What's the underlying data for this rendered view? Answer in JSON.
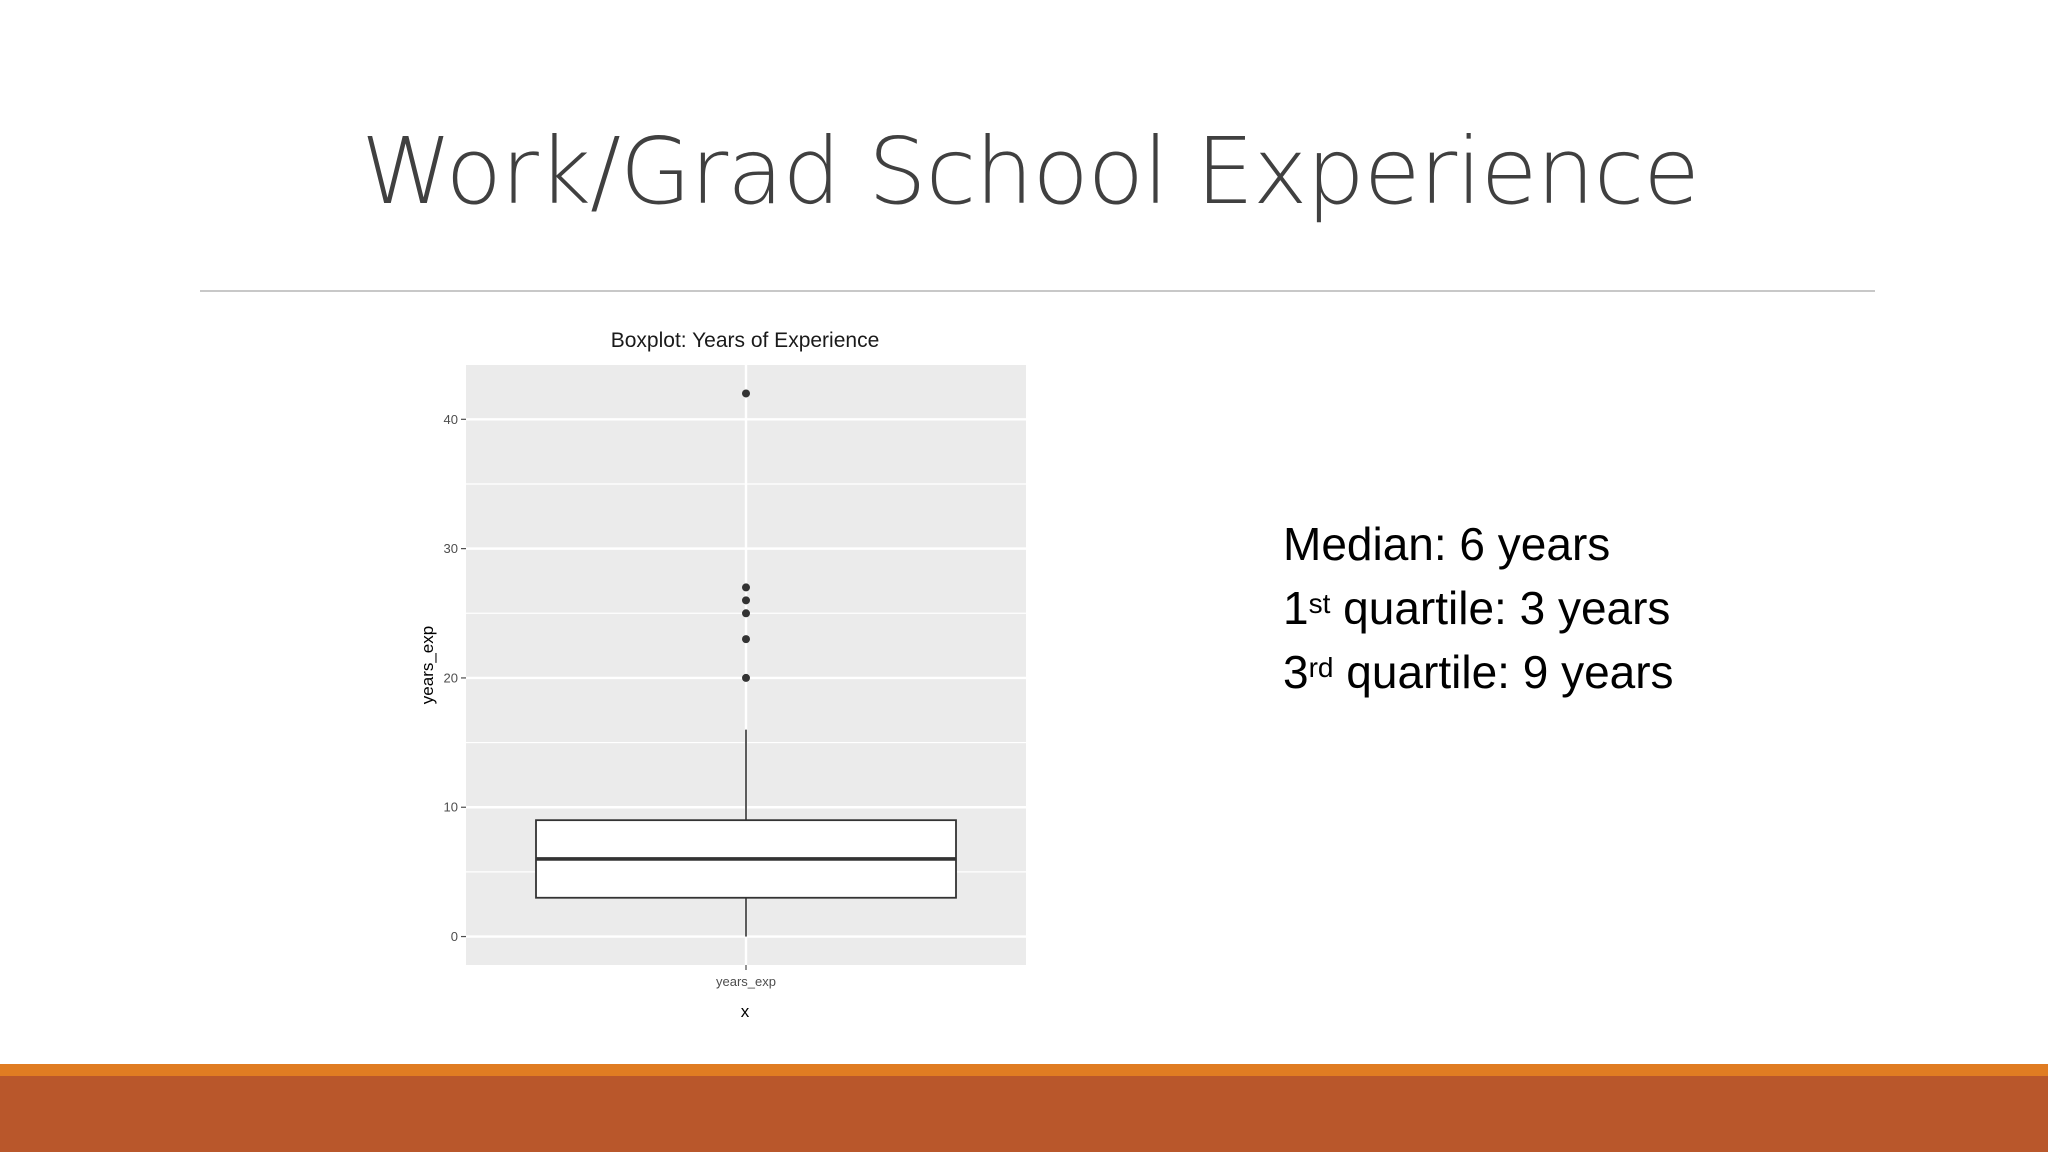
{
  "slide": {
    "title": "Work/Grad School Experience",
    "stats": [
      {
        "prefix": "Median: 6 years",
        "sup": "",
        "suffix": ""
      },
      {
        "prefix": "1",
        "sup": "st",
        "suffix": " quartile: 3 years"
      },
      {
        "prefix": "3",
        "sup": "rd",
        "suffix": " quartile: 9 years"
      }
    ]
  },
  "colors": {
    "panel": "#ebebeb",
    "grid": "#ffffff",
    "accent_orange": "#e07c22",
    "accent_rust": "#b9572b"
  },
  "chart_data": {
    "type": "boxplot",
    "title": "Boxplot: Years of Experience",
    "xlabel": "x",
    "ylabel": "years_exp",
    "categories": [
      "years_exp"
    ],
    "yticks": [
      0,
      10,
      20,
      30,
      40
    ],
    "ytick_labels": [
      "0",
      "10",
      "20",
      "30",
      "40"
    ],
    "ylim": [
      -2.2,
      44.2
    ],
    "grid": true,
    "boxes": [
      {
        "category": "years_exp",
        "whisker_low": 0,
        "q1": 3,
        "median": 6,
        "q3": 9,
        "whisker_high": 16,
        "outliers": [
          20,
          23,
          25,
          26,
          27,
          42
        ]
      }
    ]
  }
}
